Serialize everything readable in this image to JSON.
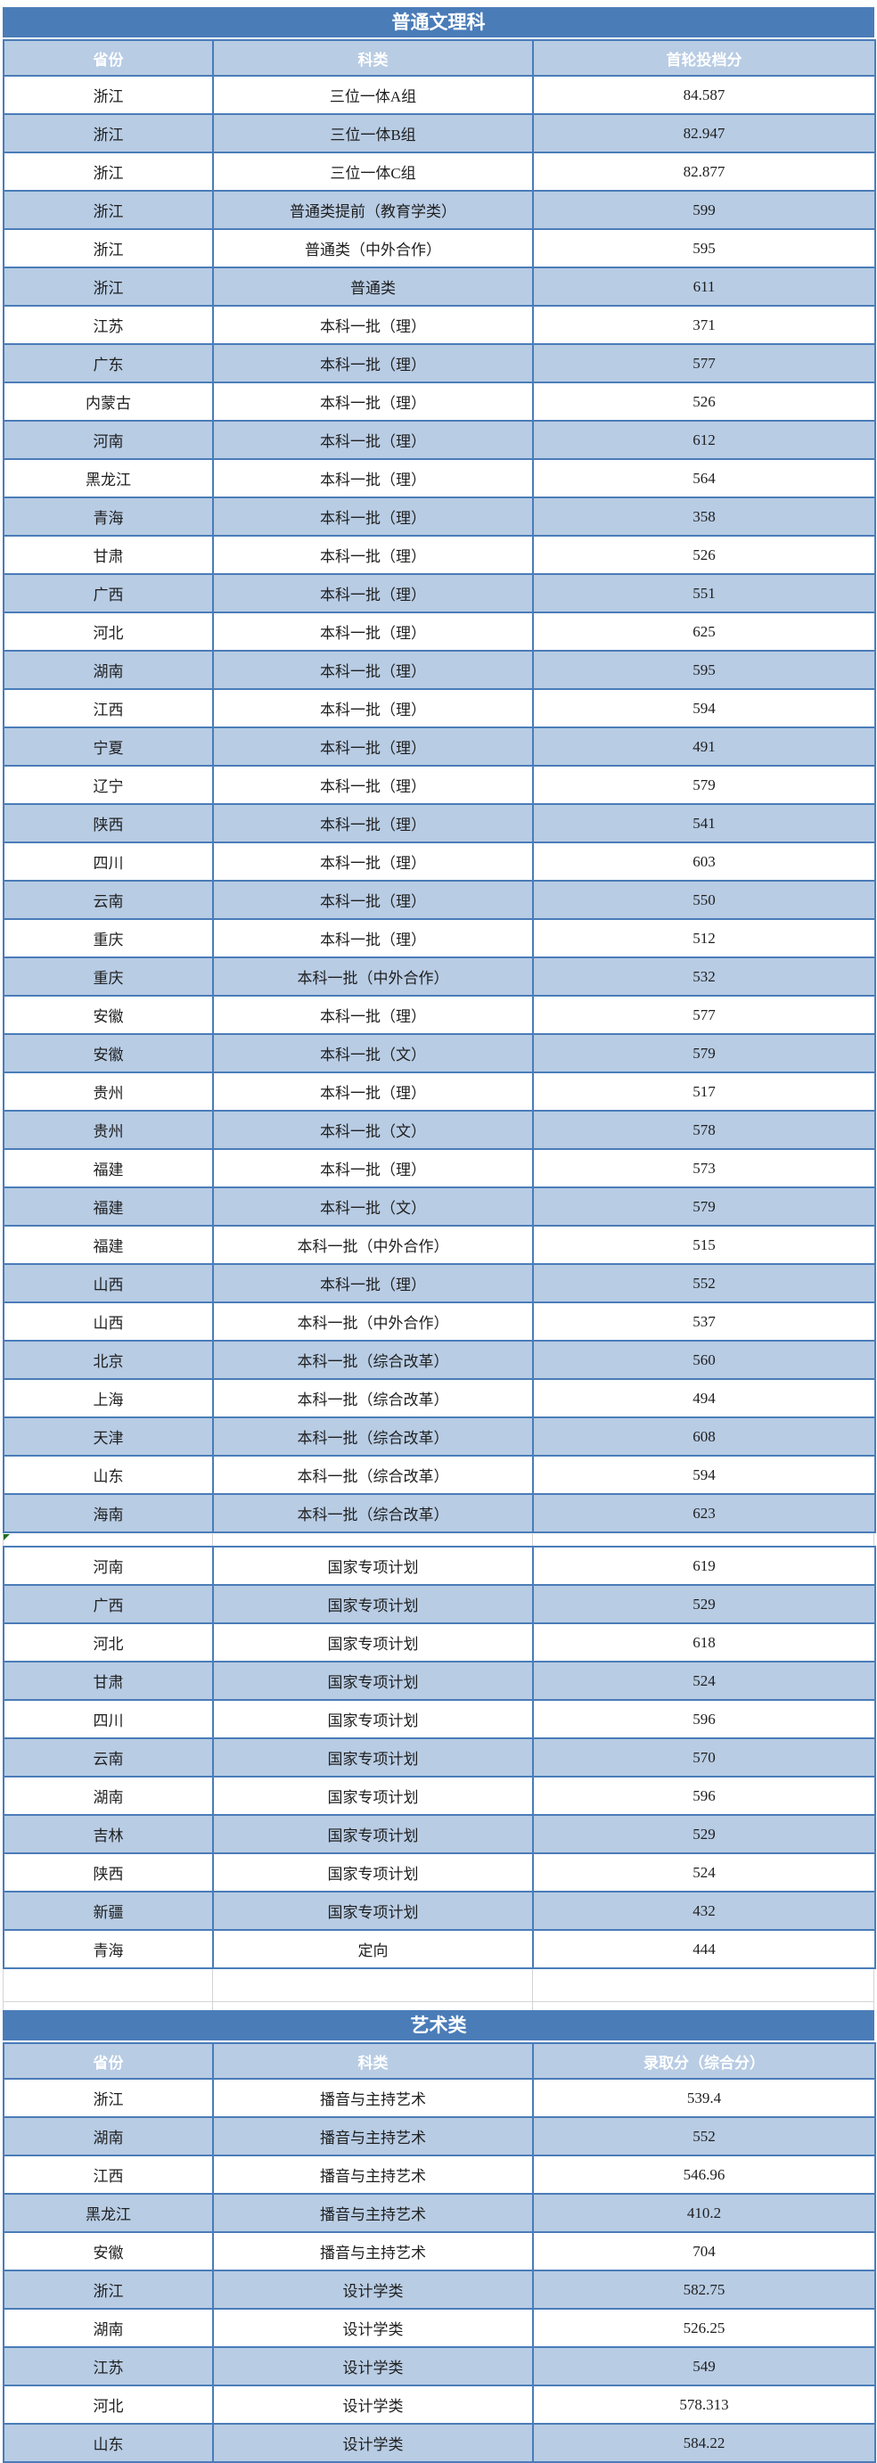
{
  "colors": {
    "title_bar_bg": "#4a7cb8",
    "header_bg": "#b8cce4",
    "row_alt_bg": "#b8cce4",
    "row_bg": "#ffffff",
    "border_blue": "#4a7cb8",
    "spacer_line_gray": "#d4d4d4",
    "flag_green": "#1e6e1e",
    "text_dark": "#1f1f1f",
    "text_white": "#ffffff"
  },
  "regular_table": {
    "title": "普通文理科",
    "columns": [
      "省份",
      "科类",
      "首轮投档分"
    ],
    "rows": [
      [
        "浙江",
        "三位一体A组",
        "84.587"
      ],
      [
        "浙江",
        "三位一体B组",
        "82.947"
      ],
      [
        "浙江",
        "三位一体C组",
        "82.877"
      ],
      [
        "浙江",
        "普通类提前（教育学类）",
        "599"
      ],
      [
        "浙江",
        "普通类（中外合作）",
        "595"
      ],
      [
        "浙江",
        "普通类",
        "611"
      ],
      [
        "江苏",
        "本科一批（理）",
        "371"
      ],
      [
        "广东",
        "本科一批（理）",
        "577"
      ],
      [
        "内蒙古",
        "本科一批（理）",
        "526"
      ],
      [
        "河南",
        "本科一批（理）",
        "612"
      ],
      [
        "黑龙江",
        "本科一批（理）",
        "564"
      ],
      [
        "青海",
        "本科一批（理）",
        "358"
      ],
      [
        "甘肃",
        "本科一批（理）",
        "526"
      ],
      [
        "广西",
        "本科一批（理）",
        "551"
      ],
      [
        "河北",
        "本科一批（理）",
        "625"
      ],
      [
        "湖南",
        "本科一批（理）",
        "595"
      ],
      [
        "江西",
        "本科一批（理）",
        "594"
      ],
      [
        "宁夏",
        "本科一批（理）",
        "491"
      ],
      [
        "辽宁",
        "本科一批（理）",
        "579"
      ],
      [
        "陕西",
        "本科一批（理）",
        "541"
      ],
      [
        "四川",
        "本科一批（理）",
        "603"
      ],
      [
        "云南",
        "本科一批（理）",
        "550"
      ],
      [
        "重庆",
        "本科一批（理）",
        "512"
      ],
      [
        "重庆",
        "本科一批（中外合作）",
        "532"
      ],
      [
        "安徽",
        "本科一批（理）",
        "577"
      ],
      [
        "安徽",
        "本科一批（文）",
        "579"
      ],
      [
        "贵州",
        "本科一批（理）",
        "517"
      ],
      [
        "贵州",
        "本科一批（文）",
        "578"
      ],
      [
        "福建",
        "本科一批（理）",
        "573"
      ],
      [
        "福建",
        "本科一批（文）",
        "579"
      ],
      [
        "福建",
        "本科一批（中外合作）",
        "515"
      ],
      [
        "山西",
        "本科一批（理）",
        "552"
      ],
      [
        "山西",
        "本科一批（中外合作）",
        "537"
      ],
      [
        "北京",
        "本科一批（综合改革）",
        "560"
      ],
      [
        "上海",
        "本科一批（综合改革）",
        "494"
      ],
      [
        "天津",
        "本科一批（综合改革）",
        "608"
      ],
      [
        "山东",
        "本科一批（综合改革）",
        "594"
      ],
      [
        "海南",
        "本科一批（综合改革）",
        "623"
      ]
    ]
  },
  "special_plan_rows": [
    [
      "河南",
      "国家专项计划",
      "619"
    ],
    [
      "广西",
      "国家专项计划",
      "529"
    ],
    [
      "河北",
      "国家专项计划",
      "618"
    ],
    [
      "甘肃",
      "国家专项计划",
      "524"
    ],
    [
      "四川",
      "国家专项计划",
      "596"
    ],
    [
      "云南",
      "国家专项计划",
      "570"
    ],
    [
      "湖南",
      "国家专项计划",
      "596"
    ],
    [
      "吉林",
      "国家专项计划",
      "529"
    ],
    [
      "陕西",
      "国家专项计划",
      "524"
    ],
    [
      "新疆",
      "国家专项计划",
      "432"
    ],
    [
      "青海",
      "定向",
      "444"
    ]
  ],
  "art_table": {
    "title": "艺术类",
    "columns": [
      "省份",
      "科类",
      "录取分（综合分）"
    ],
    "rows": [
      [
        "浙江",
        "播音与主持艺术",
        "539.4"
      ],
      [
        "湖南",
        "播音与主持艺术",
        "552"
      ],
      [
        "江西",
        "播音与主持艺术",
        "546.96"
      ],
      [
        "黑龙江",
        "播音与主持艺术",
        "410.2"
      ],
      [
        "安徽",
        "播音与主持艺术",
        "704"
      ],
      [
        "浙江",
        "设计学类",
        "582.75"
      ],
      [
        "湖南",
        "设计学类",
        "526.25"
      ],
      [
        "江苏",
        "设计学类",
        "549"
      ],
      [
        "河北",
        "设计学类",
        "578.313"
      ],
      [
        "山东",
        "设计学类",
        "584.22"
      ]
    ]
  }
}
